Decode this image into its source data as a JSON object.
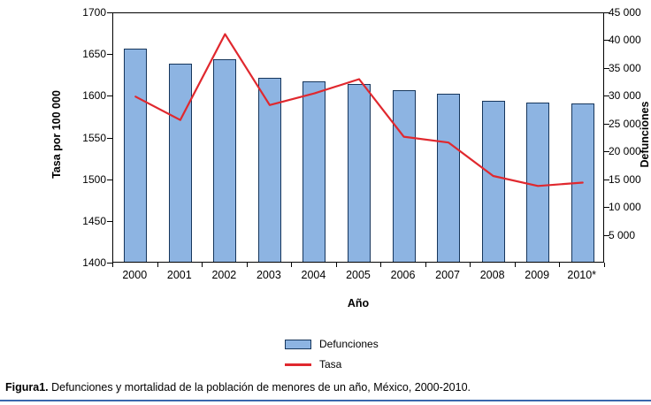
{
  "figure": {
    "caption_label": "Figura1.",
    "caption_text": " Defunciones y mortalidad de la población de menores de un año, México, 2000-2010."
  },
  "chart_data": {
    "type": "bar+line",
    "title": "",
    "categories": [
      "2000",
      "2001",
      "2002",
      "2003",
      "2004",
      "2005",
      "2006",
      "2007",
      "2008",
      "2009",
      "2010*"
    ],
    "series": [
      {
        "name": "Defunciones",
        "type": "bar",
        "axis": "right",
        "color": "#8DB4E2",
        "border_color": "#16365C",
        "values": [
          38300,
          35700,
          36400,
          33000,
          32400,
          31900,
          30800,
          30200,
          29000,
          28600,
          28400
        ]
      },
      {
        "name": "Tasa",
        "type": "line",
        "axis": "left",
        "color": "#E0282E",
        "values": [
          1600,
          1572,
          1675,
          1590,
          1604,
          1621,
          1552,
          1545,
          1505,
          1493,
          1497
        ]
      }
    ],
    "left_axis": {
      "label": "Tasa por 100 000",
      "min": 1400,
      "max": 1700,
      "step": 50,
      "ticks": [
        {
          "label": "1700",
          "value": 1700
        },
        {
          "label": "1650",
          "value": 1650
        },
        {
          "label": "1600",
          "value": 1600
        },
        {
          "label": "1550",
          "value": 1550
        },
        {
          "label": "1500",
          "value": 1500
        },
        {
          "label": "1450",
          "value": 1450
        },
        {
          "label": "1400",
          "value": 1400
        }
      ]
    },
    "right_axis": {
      "label": "Defunciones",
      "min": 0,
      "max": 45000,
      "step": 5000,
      "ticks": [
        {
          "label": "45 000",
          "value": 45000
        },
        {
          "label": "40 000",
          "value": 40000
        },
        {
          "label": "35 000",
          "value": 35000
        },
        {
          "label": "30 000",
          "value": 30000
        },
        {
          "label": "25 000",
          "value": 25000
        },
        {
          "label": "20 000",
          "value": 20000
        },
        {
          "label": "15 000",
          "value": 15000
        },
        {
          "label": "10 000",
          "value": 10000
        },
        {
          "label": "5 000",
          "value": 5000
        }
      ]
    },
    "x_axis": {
      "label": "Año"
    },
    "legend": [
      {
        "label": "Defunciones",
        "type": "bar",
        "color": "#8DB4E2",
        "border": "#16365C"
      },
      {
        "label": "Tasa",
        "type": "line",
        "color": "#E0282E"
      }
    ],
    "grid": false,
    "legend_position": "bottom"
  }
}
